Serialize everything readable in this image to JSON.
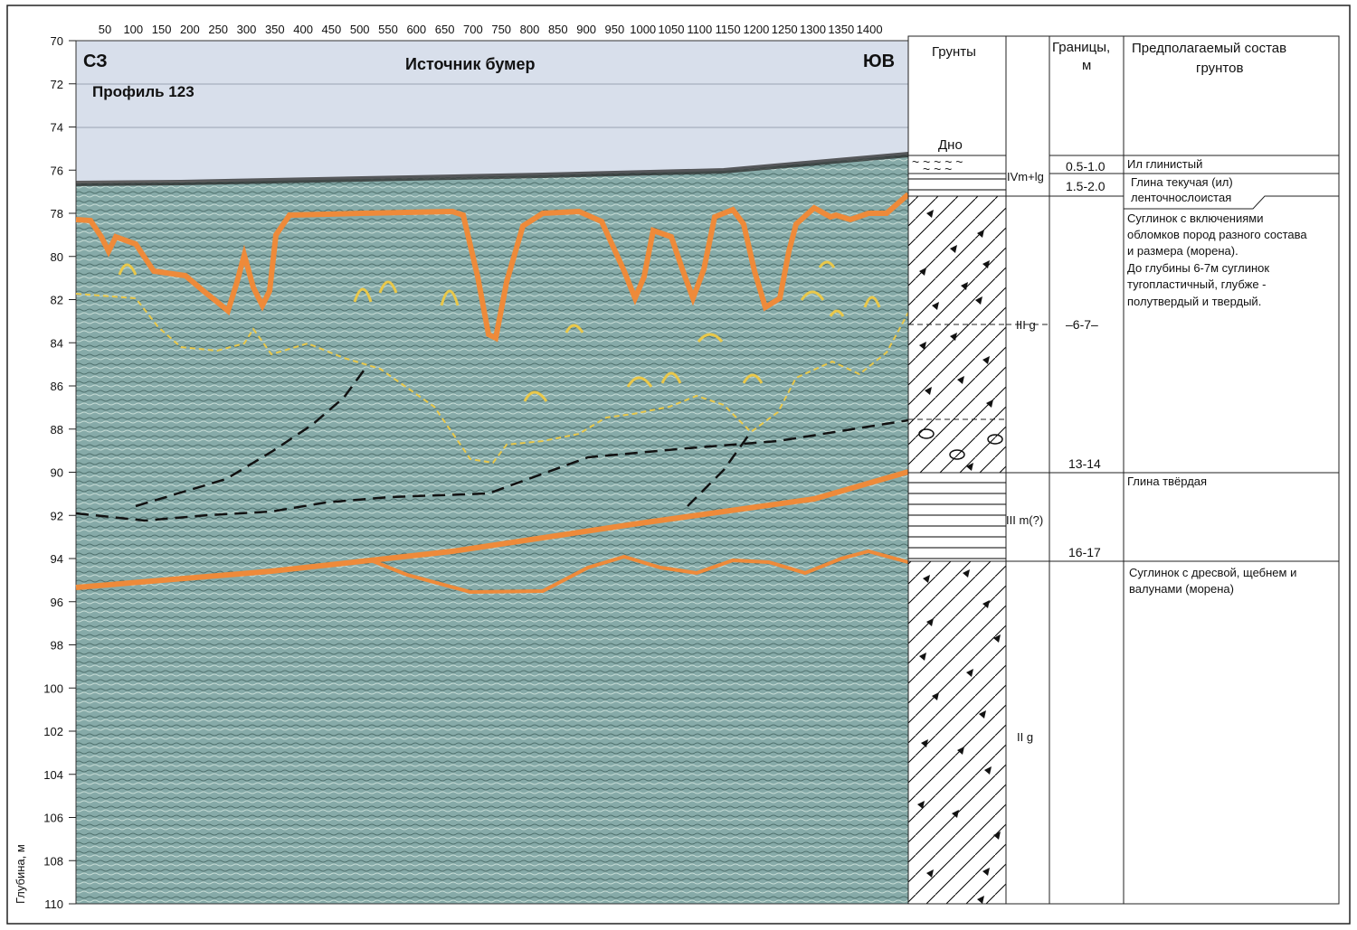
{
  "profile": {
    "left_direction": "СЗ",
    "right_direction": "ЮВ",
    "source": "Источник бумер",
    "name": "Профиль 123",
    "y_axis_label": "Глубина, м",
    "x_ticks": [
      "50",
      "100",
      "150",
      "200",
      "250",
      "300",
      "350",
      "400",
      "450",
      "500",
      "550",
      "600",
      "650",
      "700",
      "750",
      "800",
      "850",
      "900",
      "950",
      "1000",
      "1050",
      "1100",
      "1150",
      "1200",
      "1250",
      "1300",
      "1350",
      "1400"
    ],
    "y_ticks": [
      "70",
      "72",
      "74",
      "76",
      "78",
      "80",
      "82",
      "84",
      "86",
      "88",
      "90",
      "92",
      "94",
      "96",
      "98",
      "100",
      "102",
      "104",
      "106",
      "108",
      "110"
    ],
    "y_range": [
      70,
      110
    ],
    "x_range": [
      20,
      1480
    ],
    "colors": {
      "water": "#d7deea",
      "sediment": "#7fa7a6",
      "horizon": "#ee8a3a",
      "boundary_yellow": "#e9c84a",
      "fault_dashed": "#1a1a1a"
    }
  },
  "log": {
    "headers": {
      "soils": "Грунты",
      "bounds_line1": "Границы,",
      "bounds_line2": "м",
      "composition_line1": "Предполагаемый состав",
      "composition_line2": "грунтов"
    },
    "seabed_label": "Дно",
    "layers": [
      {
        "index": "IVm+lg",
        "top": "0.5-1.0",
        "bottom": "1.5-2.0",
        "desc1": "Ил глинистый",
        "desc2": "Глина текучая (ил)",
        "desc3": "ленточнослоистая"
      },
      {
        "index": "III g",
        "mid": "–6-7–",
        "bottom": "13-14",
        "desc": [
          "Суглинок с включениями",
          "обломков пород разного состава",
          "и размера (морена).",
          "До глубины 6-7м суглинок",
          "тугопластичный, глубже -",
          "полутвердый и твердый."
        ]
      },
      {
        "index": "III m(?)",
        "bottom": "16-17",
        "desc": [
          "Глина твёрдая"
        ]
      },
      {
        "index": "II g",
        "desc": [
          "Суглинок с дресвой, щебнем и",
          "валунами (морена)"
        ]
      }
    ]
  }
}
